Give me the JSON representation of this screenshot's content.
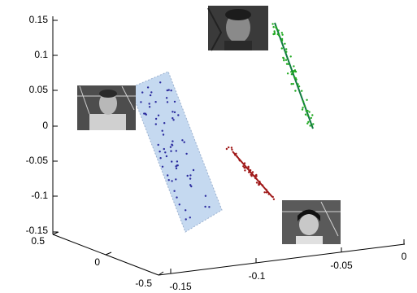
{
  "chart_data": {
    "type": "scatter",
    "projection": "3d",
    "grid": false,
    "legend": "none",
    "axes": {
      "z": {
        "ticks": [
          "0.15",
          "0.1",
          "0.05",
          "0",
          "-0.05",
          "-0.1",
          "-0.15"
        ],
        "range": [
          -0.15,
          0.15
        ]
      },
      "y": {
        "ticks": [
          "0.5",
          "0",
          "-0.5"
        ],
        "range": [
          -0.5,
          0.5
        ]
      },
      "x": {
        "ticks": [
          "-0.15",
          "-0.1",
          "-0.05",
          "0"
        ],
        "range": [
          -0.15,
          0
        ]
      }
    },
    "series": [
      {
        "color": "#2b2b9e",
        "fit": "plane",
        "fit_color": "#c5d9f0",
        "points_estimated": 70
      },
      {
        "color": "#a01818",
        "fit": "line",
        "fit_color": "#a01818",
        "points_estimated": 40
      },
      {
        "color": "#22aa22",
        "fit": "line",
        "fit_color": "#107a40",
        "points_estimated": 60
      }
    ],
    "images": [
      {
        "type": "face-photo",
        "series": 0
      },
      {
        "type": "face-photo",
        "series": 1
      },
      {
        "type": "face-photo",
        "series": 2
      }
    ]
  }
}
